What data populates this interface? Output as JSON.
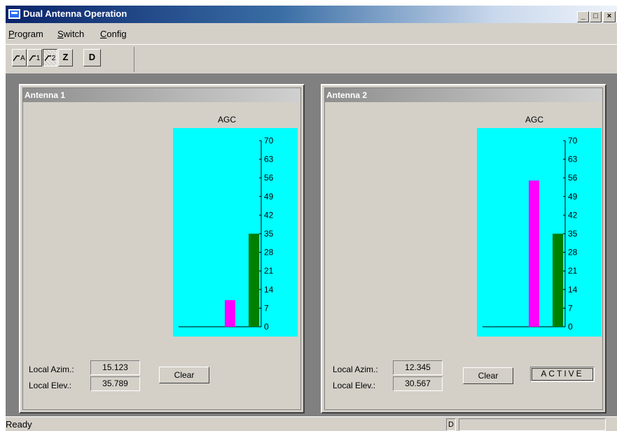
{
  "window": {
    "title": "Dual Antenna Operation",
    "minimize_label": "_",
    "maximize_label": "□",
    "close_label": "×"
  },
  "menu": [
    {
      "label": "Program",
      "mnemonic": "P",
      "rest": "rogram"
    },
    {
      "label": "Switch",
      "mnemonic": "S",
      "rest": "witch"
    },
    {
      "label": "Config",
      "mnemonic": "C",
      "rest": "onfig"
    }
  ],
  "toolbar": {
    "buttons": [
      {
        "label": "A",
        "icon": "antenna-a-icon",
        "pressed": false
      },
      {
        "label": "1",
        "icon": "antenna-1-icon",
        "pressed": false
      },
      {
        "label": "2",
        "icon": "antenna-2-icon",
        "pressed": true
      },
      {
        "label": "Z",
        "icon": "",
        "pressed": false
      },
      {
        "label": "D",
        "icon": "",
        "pressed": false
      }
    ]
  },
  "panels": [
    {
      "title": "Antenna 1",
      "agc_label": "AGC",
      "agc_max": 70,
      "agc_ticks": [
        "70",
        "63",
        "56",
        "49",
        "42",
        "35",
        "28",
        "21",
        "14",
        "7",
        "0"
      ],
      "bars": [
        {
          "color": "#ff00ff",
          "value": 10
        },
        {
          "color": "#008000",
          "value": 35
        }
      ],
      "azim_label": "Local Azim.:",
      "azim_value": "15.123",
      "elev_label": "Local Elev.:",
      "elev_value": "35.789",
      "clear_label": "Clear",
      "status": ""
    },
    {
      "title": "Antenna 2",
      "agc_label": "AGC",
      "agc_max": 70,
      "agc_ticks": [
        "70",
        "63",
        "56",
        "49",
        "42",
        "35",
        "28",
        "21",
        "14",
        "7",
        "0"
      ],
      "bars": [
        {
          "color": "#ff00ff",
          "value": 55
        },
        {
          "color": "#008000",
          "value": 35
        }
      ],
      "azim_label": "Local Azim.:",
      "azim_value": "12.345",
      "elev_label": "Local Elev.:",
      "elev_value": "30.567",
      "clear_label": "Clear",
      "status": "ACTIVE"
    }
  ],
  "statusbar": {
    "text": "Ready",
    "indicator": "D"
  }
}
